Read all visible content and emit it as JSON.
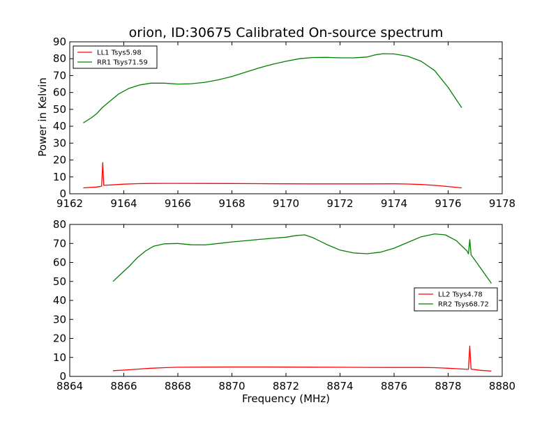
{
  "chart_data": [
    {
      "type": "line",
      "title": "orion, ID:30675 Calibrated On-source spectrum",
      "xlabel": "",
      "ylabel": "Power in Kelvin",
      "xlim": [
        9162,
        9178
      ],
      "ylim": [
        0,
        90
      ],
      "xticks": [
        "9162",
        "9164",
        "9166",
        "9168",
        "9170",
        "9172",
        "9174",
        "9176",
        "9178"
      ],
      "yticks": [
        "0",
        "10",
        "20",
        "30",
        "40",
        "50",
        "60",
        "70",
        "80",
        "90"
      ],
      "legend_position": "upper-left",
      "grid": false,
      "series": [
        {
          "name": "LL1 Tsys5.98",
          "color": "#ff0000",
          "points": [
            [
              9162.5,
              3.5
            ],
            [
              9163.0,
              4.0
            ],
            [
              9163.18,
              4.5
            ],
            [
              9163.22,
              18.5
            ],
            [
              9163.26,
              5.0
            ],
            [
              9163.6,
              5.3
            ],
            [
              9164.0,
              5.7
            ],
            [
              9164.5,
              6.0
            ],
            [
              9165.0,
              6.1
            ],
            [
              9165.5,
              6.15
            ],
            [
              9166.0,
              6.15
            ],
            [
              9167.0,
              6.1
            ],
            [
              9168.0,
              6.05
            ],
            [
              9169.0,
              6.0
            ],
            [
              9170.0,
              5.9
            ],
            [
              9171.0,
              5.85
            ],
            [
              9172.0,
              5.85
            ],
            [
              9173.0,
              5.85
            ],
            [
              9174.0,
              5.9
            ],
            [
              9174.5,
              5.8
            ],
            [
              9175.0,
              5.5
            ],
            [
              9175.5,
              5.0
            ],
            [
              9176.0,
              4.3
            ],
            [
              9176.5,
              3.5
            ]
          ]
        },
        {
          "name": "RR1 Tsys71.59",
          "color": "#008000",
          "points": [
            [
              9162.5,
              42.0
            ],
            [
              9162.8,
              45.0
            ],
            [
              9163.0,
              47.5
            ],
            [
              9163.2,
              51.0
            ],
            [
              9163.5,
              55.0
            ],
            [
              9163.8,
              59.0
            ],
            [
              9164.2,
              62.5
            ],
            [
              9164.6,
              64.5
            ],
            [
              9165.0,
              65.5
            ],
            [
              9165.5,
              65.5
            ],
            [
              9166.0,
              65.0
            ],
            [
              9166.5,
              65.2
            ],
            [
              9167.0,
              66.0
            ],
            [
              9167.5,
              67.5
            ],
            [
              9168.0,
              69.5
            ],
            [
              9168.5,
              72.0
            ],
            [
              9169.0,
              74.5
            ],
            [
              9169.5,
              76.7
            ],
            [
              9170.0,
              78.5
            ],
            [
              9170.5,
              80.0
            ],
            [
              9171.0,
              80.7
            ],
            [
              9171.5,
              80.8
            ],
            [
              9172.0,
              80.5
            ],
            [
              9172.5,
              80.5
            ],
            [
              9173.0,
              81.0
            ],
            [
              9173.3,
              82.3
            ],
            [
              9173.6,
              83.0
            ],
            [
              9174.0,
              82.8
            ],
            [
              9174.5,
              81.5
            ],
            [
              9175.0,
              78.5
            ],
            [
              9175.5,
              73.0
            ],
            [
              9176.0,
              63.0
            ],
            [
              9176.5,
              51.0
            ]
          ]
        }
      ]
    },
    {
      "type": "line",
      "title": "",
      "xlabel": "Frequency (MHz)",
      "ylabel": "",
      "xlim": [
        8864,
        8880
      ],
      "ylim": [
        0,
        80
      ],
      "xticks": [
        "8864",
        "8866",
        "8868",
        "8870",
        "8872",
        "8874",
        "8876",
        "8878",
        "8880"
      ],
      "yticks": [
        "0",
        "10",
        "20",
        "30",
        "40",
        "50",
        "60",
        "70",
        "80"
      ],
      "legend_position": "center-right",
      "grid": false,
      "series": [
        {
          "name": "LL2 Tsys4.78",
          "color": "#ff0000",
          "points": [
            [
              8865.6,
              3.0
            ],
            [
              8866.0,
              3.3
            ],
            [
              8866.5,
              3.8
            ],
            [
              8867.0,
              4.3
            ],
            [
              8867.5,
              4.6
            ],
            [
              8868.0,
              4.8
            ],
            [
              8869.0,
              4.9
            ],
            [
              8870.0,
              4.95
            ],
            [
              8871.0,
              4.95
            ],
            [
              8872.0,
              4.9
            ],
            [
              8873.0,
              4.85
            ],
            [
              8874.0,
              4.8
            ],
            [
              8875.0,
              4.75
            ],
            [
              8876.0,
              4.7
            ],
            [
              8877.0,
              4.7
            ],
            [
              8877.5,
              4.6
            ],
            [
              8878.0,
              4.3
            ],
            [
              8878.5,
              3.9
            ],
            [
              8878.75,
              3.7
            ],
            [
              8878.8,
              16.0
            ],
            [
              8878.85,
              3.8
            ],
            [
              8879.2,
              3.2
            ],
            [
              8879.6,
              2.8
            ]
          ]
        },
        {
          "name": "RR2 Tsys68.72",
          "color": "#008000",
          "points": [
            [
              8865.6,
              50.0
            ],
            [
              8865.9,
              54.0
            ],
            [
              8866.2,
              58.0
            ],
            [
              8866.5,
              62.5
            ],
            [
              8866.8,
              66.0
            ],
            [
              8867.1,
              68.5
            ],
            [
              8867.5,
              69.8
            ],
            [
              8868.0,
              70.0
            ],
            [
              8868.5,
              69.3
            ],
            [
              8869.0,
              69.2
            ],
            [
              8869.5,
              70.0
            ],
            [
              8870.0,
              70.8
            ],
            [
              8870.5,
              71.4
            ],
            [
              8871.0,
              72.1
            ],
            [
              8871.5,
              72.7
            ],
            [
              8872.0,
              73.3
            ],
            [
              8872.4,
              74.2
            ],
            [
              8872.7,
              74.5
            ],
            [
              8873.0,
              73.0
            ],
            [
              8873.5,
              69.5
            ],
            [
              8874.0,
              66.5
            ],
            [
              8874.5,
              65.0
            ],
            [
              8875.0,
              64.6
            ],
            [
              8875.5,
              65.4
            ],
            [
              8876.0,
              67.5
            ],
            [
              8876.5,
              70.5
            ],
            [
              8877.0,
              73.5
            ],
            [
              8877.5,
              75.0
            ],
            [
              8877.9,
              74.5
            ],
            [
              8878.3,
              71.5
            ],
            [
              8878.7,
              66.0
            ],
            [
              8878.75,
              64.5
            ],
            [
              8878.8,
              72.0
            ],
            [
              8878.85,
              64.0
            ],
            [
              8879.0,
              61.0
            ],
            [
              8879.3,
              55.0
            ],
            [
              8879.6,
              49.0
            ]
          ]
        }
      ]
    }
  ]
}
